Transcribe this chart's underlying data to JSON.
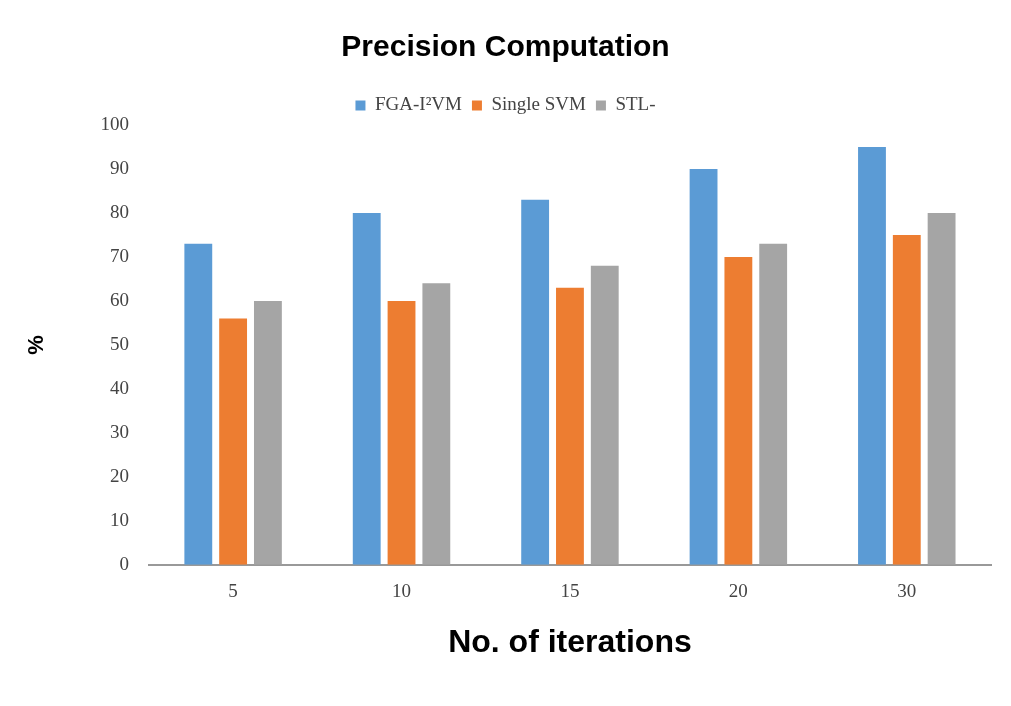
{
  "chart_data": {
    "type": "bar",
    "title": "Precision Computation",
    "xlabel": "No. of iterations",
    "ylabel": "%",
    "categories": [
      "5",
      "10",
      "15",
      "20",
      "30"
    ],
    "series": [
      {
        "name": "FGA-I²VM",
        "color": "#5b9bd5",
        "values": [
          73,
          80,
          83,
          90,
          95
        ]
      },
      {
        "name": "Single SVM",
        "color": "#ed7d31",
        "values": [
          56,
          60,
          63,
          70,
          75
        ]
      },
      {
        "name": "STL-",
        "color": "#a5a5a5",
        "values": [
          60,
          64,
          68,
          73,
          80
        ]
      }
    ],
    "ylim": [
      0,
      100
    ],
    "yticks": [
      0,
      10,
      20,
      30,
      40,
      50,
      60,
      70,
      80,
      90,
      100
    ],
    "grid": false,
    "legend": "top"
  }
}
